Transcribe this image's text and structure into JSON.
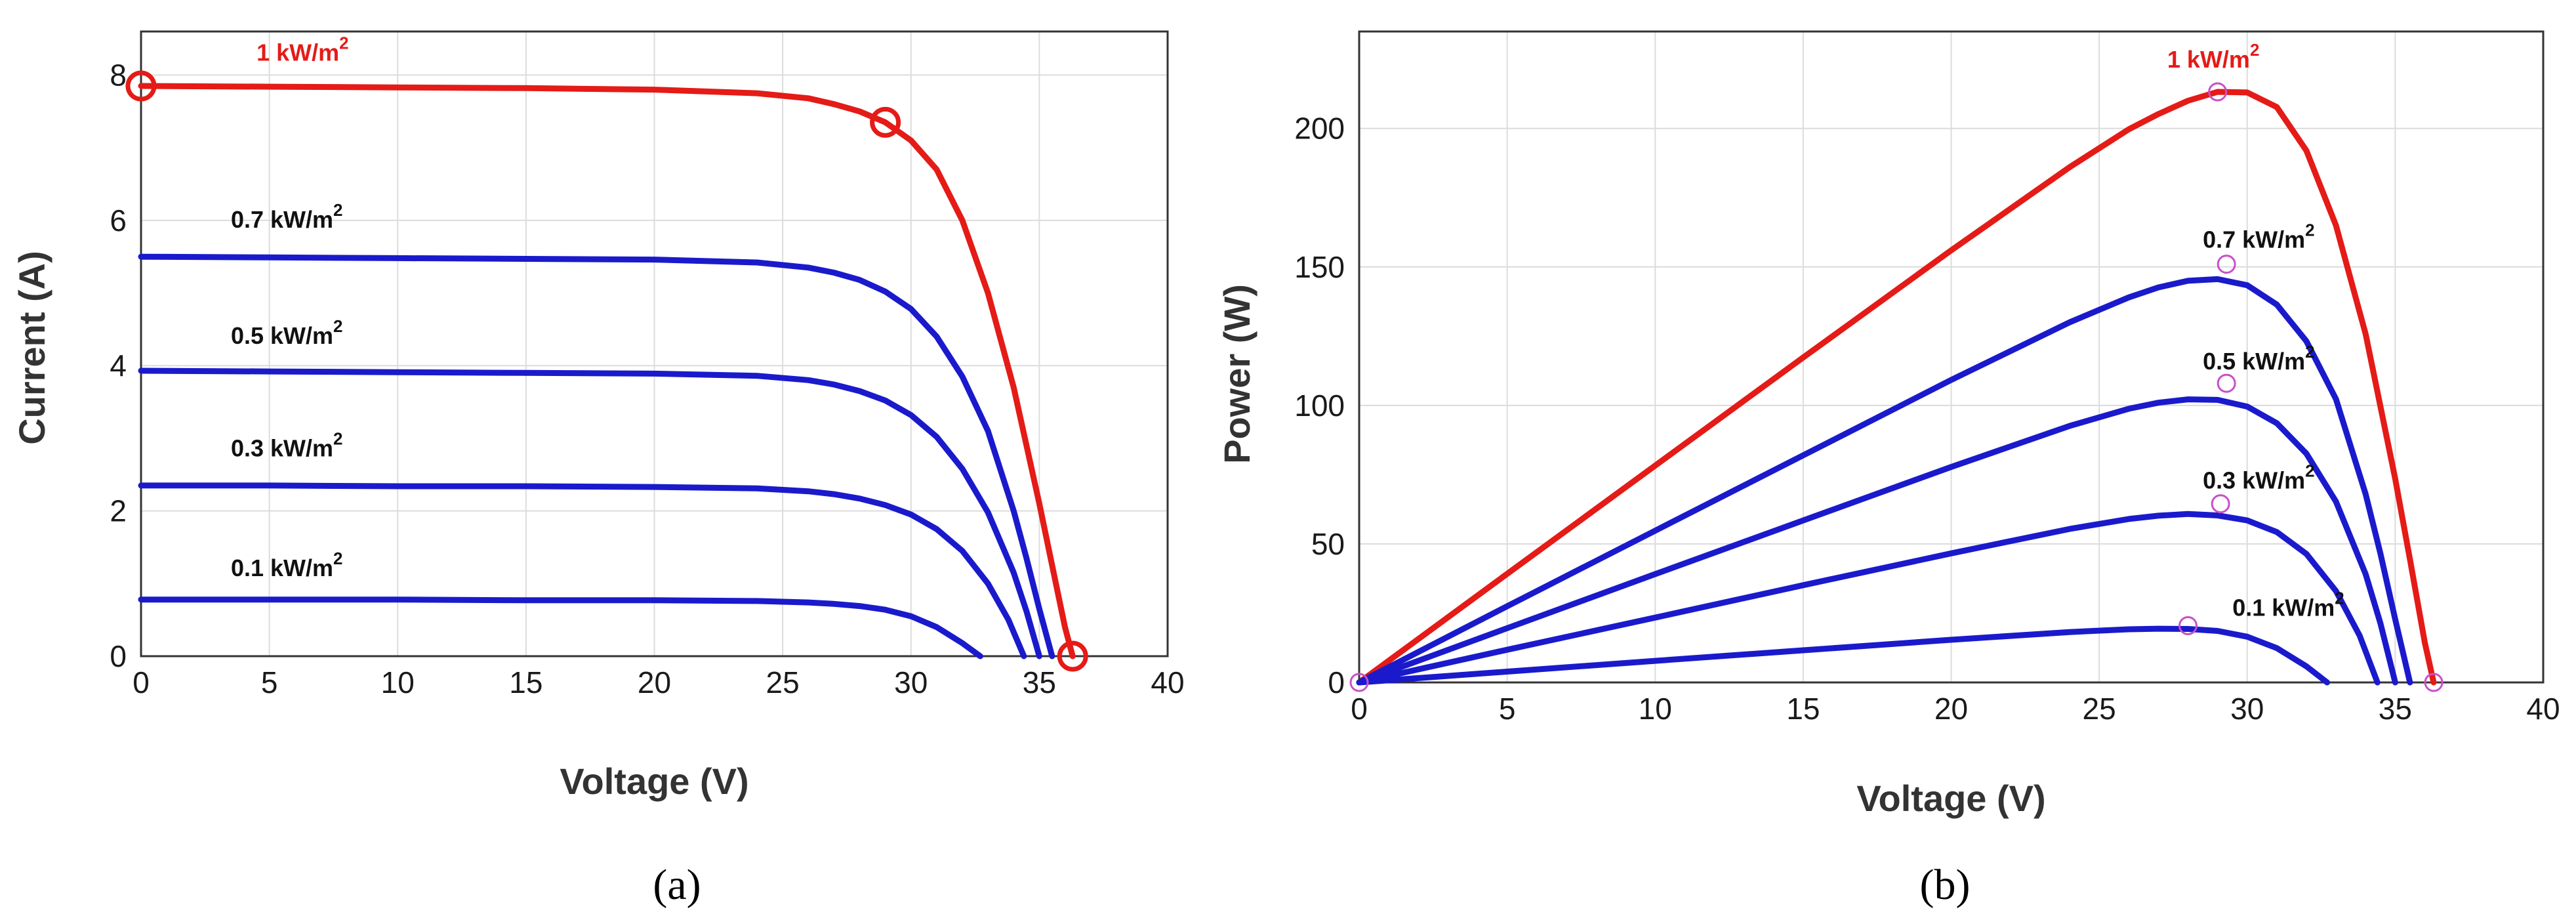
{
  "colors": {
    "accent_red": "#e41b17",
    "curve_blue": "#1a1acc",
    "mpp_marker_b": "#c850c8"
  },
  "chart_data": [
    {
      "id": "a",
      "type": "line",
      "caption": "(a)",
      "xlabel": "Voltage (V)",
      "ylabel": "Current (A)",
      "xlim": [
        0,
        40
      ],
      "ylim": [
        0,
        8.6
      ],
      "xticks": [
        "0",
        "5",
        "10",
        "15",
        "20",
        "25",
        "30",
        "35",
        "40"
      ],
      "yticks": [
        "0",
        "2",
        "4",
        "6",
        "8"
      ],
      "grid": true,
      "series": [
        {
          "name": "1 kW/m",
          "sup": "2",
          "color": "#e41b17",
          "x": [
            0,
            5,
            10,
            15,
            20,
            24,
            26,
            27,
            28,
            29,
            30,
            31,
            32,
            33,
            34,
            35,
            35.5,
            36,
            36.3
          ],
          "y": [
            7.85,
            7.84,
            7.83,
            7.82,
            7.8,
            7.75,
            7.68,
            7.6,
            7.5,
            7.35,
            7.1,
            6.7,
            6.0,
            5.0,
            3.7,
            2.1,
            1.25,
            0.4,
            0
          ]
        },
        {
          "name": "0.7 kW/m",
          "sup": "2",
          "color": "#1a1acc",
          "x": [
            0,
            5,
            10,
            15,
            20,
            24,
            26,
            27,
            28,
            29,
            30,
            31,
            32,
            33,
            34,
            34.5,
            35,
            35.5
          ],
          "y": [
            5.5,
            5.49,
            5.48,
            5.47,
            5.46,
            5.42,
            5.35,
            5.28,
            5.18,
            5.02,
            4.78,
            4.4,
            3.85,
            3.1,
            2.0,
            1.35,
            0.65,
            0
          ]
        },
        {
          "name": "0.5 kW/m",
          "sup": "2",
          "color": "#1a1acc",
          "x": [
            0,
            5,
            10,
            15,
            20,
            24,
            26,
            27,
            28,
            29,
            30,
            31,
            32,
            33,
            34,
            34.5,
            35
          ],
          "y": [
            3.93,
            3.92,
            3.91,
            3.9,
            3.89,
            3.86,
            3.8,
            3.74,
            3.65,
            3.52,
            3.32,
            3.02,
            2.58,
            1.98,
            1.15,
            0.62,
            0
          ]
        },
        {
          "name": "0.3 kW/m",
          "sup": "2",
          "color": "#1a1acc",
          "x": [
            0,
            5,
            10,
            15,
            20,
            24,
            26,
            27,
            28,
            29,
            30,
            31,
            32,
            33,
            33.8,
            34.4
          ],
          "y": [
            2.35,
            2.35,
            2.34,
            2.34,
            2.33,
            2.31,
            2.27,
            2.23,
            2.17,
            2.08,
            1.95,
            1.75,
            1.45,
            1.0,
            0.5,
            0
          ]
        },
        {
          "name": "0.1 kW/m",
          "sup": "2",
          "color": "#1a1acc",
          "x": [
            0,
            5,
            10,
            15,
            20,
            24,
            26,
            27,
            28,
            29,
            30,
            31,
            32,
            32.7
          ],
          "y": [
            0.78,
            0.78,
            0.78,
            0.77,
            0.77,
            0.76,
            0.74,
            0.72,
            0.69,
            0.64,
            0.55,
            0.4,
            0.18,
            0
          ]
        }
      ],
      "markers": [
        {
          "x": 0,
          "y": 7.85
        },
        {
          "x": 29,
          "y": 7.35
        },
        {
          "x": 36.3,
          "y": 0
        }
      ],
      "label_positions_data": [
        [
          4.5,
          8.2
        ],
        [
          3.5,
          5.9
        ],
        [
          3.5,
          4.3
        ],
        [
          3.5,
          2.75
        ],
        [
          3.5,
          1.1
        ]
      ]
    },
    {
      "id": "b",
      "type": "line",
      "caption": "(b)",
      "xlabel": "Voltage (V)",
      "ylabel": "Power (W)",
      "xlim": [
        0,
        40
      ],
      "ylim": [
        0,
        235
      ],
      "xticks": [
        "0",
        "5",
        "10",
        "15",
        "20",
        "25",
        "30",
        "35",
        "40"
      ],
      "yticks": [
        "0",
        "50",
        "100",
        "150",
        "200"
      ],
      "grid": true,
      "series": [
        {
          "name": "1 kW/m",
          "sup": "2",
          "color": "#e41b17",
          "x": [
            0,
            5,
            10,
            15,
            20,
            24,
            26,
            27,
            28,
            29,
            30,
            31,
            32,
            33,
            34,
            35,
            35.5,
            36,
            36.3
          ],
          "y": [
            0,
            39.2,
            78.3,
            117.3,
            156,
            186,
            199.7,
            205.2,
            210,
            213.2,
            213,
            207.7,
            192,
            165,
            125.8,
            73.5,
            44.4,
            14.4,
            0
          ]
        },
        {
          "name": "0.7 kW/m",
          "sup": "2",
          "color": "#1a1acc",
          "x": [
            0,
            5,
            10,
            15,
            20,
            24,
            26,
            27,
            28,
            29,
            30,
            31,
            32,
            33,
            34,
            34.5,
            35,
            35.5
          ],
          "y": [
            0,
            27.5,
            54.8,
            82,
            109.2,
            130,
            139,
            142.6,
            145,
            145.6,
            143.4,
            136.4,
            123.2,
            102.3,
            68,
            46.6,
            22.8,
            0
          ]
        },
        {
          "name": "0.5 kW/m",
          "sup": "2",
          "color": "#1a1acc",
          "x": [
            0,
            5,
            10,
            15,
            20,
            24,
            26,
            27,
            28,
            29,
            30,
            31,
            32,
            33,
            34,
            34.5,
            35
          ],
          "y": [
            0,
            19.6,
            39.1,
            58.5,
            77.8,
            92.6,
            98.8,
            101,
            102.2,
            102,
            99.6,
            93.6,
            82.6,
            65.3,
            39.1,
            21.4,
            0
          ]
        },
        {
          "name": "0.3 kW/m",
          "sup": "2",
          "color": "#1a1acc",
          "x": [
            0,
            5,
            10,
            15,
            20,
            24,
            26,
            27,
            28,
            29,
            30,
            31,
            32,
            33,
            33.8,
            34.4
          ],
          "y": [
            0,
            11.8,
            23.4,
            35.1,
            46.6,
            55.4,
            59,
            60.2,
            60.8,
            60.3,
            58.5,
            54.3,
            46.4,
            33,
            16.9,
            0
          ]
        },
        {
          "name": "0.1 kW/m",
          "sup": "2",
          "color": "#1a1acc",
          "x": [
            0,
            5,
            10,
            15,
            20,
            24,
            26,
            27,
            28,
            29,
            30,
            31,
            32,
            32.7
          ],
          "y": [
            0,
            3.9,
            7.8,
            11.6,
            15.4,
            18.2,
            19.2,
            19.4,
            19.3,
            18.6,
            16.5,
            12.4,
            5.8,
            0
          ]
        }
      ],
      "markers": [
        {
          "x": 0,
          "y": 0
        },
        {
          "x": 29,
          "y": 213.2
        },
        {
          "x": 29.3,
          "y": 151
        },
        {
          "x": 29.3,
          "y": 108
        },
        {
          "x": 29.1,
          "y": 64.5
        },
        {
          "x": 28,
          "y": 20.5
        },
        {
          "x": 36.3,
          "y": 0
        }
      ],
      "label_positions_data": [
        [
          27.3,
          222
        ],
        [
          28.5,
          157
        ],
        [
          28.5,
          113
        ],
        [
          28.5,
          70
        ],
        [
          29.5,
          24
        ]
      ]
    }
  ]
}
